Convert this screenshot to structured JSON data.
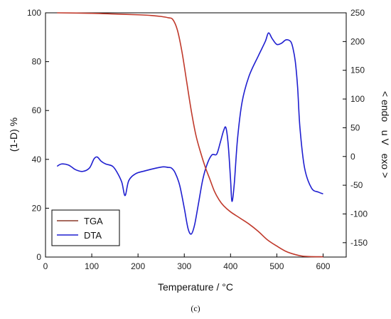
{
  "chart_data": {
    "type": "line",
    "caption": "(c)",
    "xlabel": "Temperature / °C",
    "ylabel_left": "(1-D) %",
    "ylabel_right": "< endo   u V   exo >",
    "xlim": [
      0,
      650
    ],
    "ylim_left": [
      0,
      100
    ],
    "ylim_right": [
      -175,
      250
    ],
    "x_ticks": [
      0,
      100,
      200,
      300,
      400,
      500,
      600
    ],
    "y_left_ticks": [
      0,
      20,
      40,
      60,
      80,
      100
    ],
    "y_right_ticks": [
      -150,
      -100,
      -50,
      0,
      50,
      100,
      150,
      200,
      250
    ],
    "grid": false,
    "legend_position": "bottom-left",
    "colors": {
      "TGA": "#c0392b",
      "DTA": "#1f1fd0"
    },
    "series": [
      {
        "name": "TGA",
        "axis": "left",
        "x": [
          25,
          100,
          150,
          200,
          230,
          250,
          265,
          275,
          285,
          295,
          305,
          315,
          325,
          335,
          345,
          355,
          365,
          375,
          385,
          400,
          420,
          440,
          460,
          480,
          500,
          520,
          540,
          555,
          570,
          600
        ],
        "y": [
          100,
          99.8,
          99.5,
          99.2,
          98.9,
          98.5,
          98,
          97.3,
          93,
          84,
          72,
          60,
          50,
          43,
          37,
          32,
          27,
          23.5,
          21,
          18.5,
          16,
          13.5,
          10.5,
          7,
          4.5,
          2.3,
          1,
          0.4,
          0.2,
          0.1
        ]
      },
      {
        "name": "DTA",
        "axis": "right",
        "x": [
          25,
          35,
          50,
          65,
          80,
          95,
          105,
          112,
          120,
          130,
          145,
          155,
          165,
          172,
          180,
          195,
          215,
          240,
          255,
          265,
          272,
          280,
          290,
          300,
          308,
          315,
          322,
          330,
          340,
          350,
          360,
          370,
          378,
          385,
          390,
          395,
          400,
          403,
          408,
          415,
          425,
          440,
          460,
          475,
          482,
          490,
          500,
          510,
          520,
          530,
          535,
          540,
          545,
          550,
          560,
          575,
          590,
          600
        ],
        "y": [
          -17,
          -13,
          -15,
          -23,
          -26,
          -20,
          -4,
          -1,
          -8,
          -13,
          -17,
          -28,
          -45,
          -68,
          -42,
          -30,
          -25,
          -20,
          -18,
          -19,
          -20,
          -28,
          -50,
          -90,
          -125,
          -135,
          -120,
          -85,
          -40,
          -12,
          3,
          4,
          25,
          45,
          50,
          20,
          -40,
          -78,
          -48,
          30,
          95,
          140,
          175,
          200,
          215,
          205,
          195,
          197,
          203,
          200,
          188,
          165,
          120,
          50,
          -20,
          -55,
          -62,
          -65
        ]
      }
    ]
  }
}
